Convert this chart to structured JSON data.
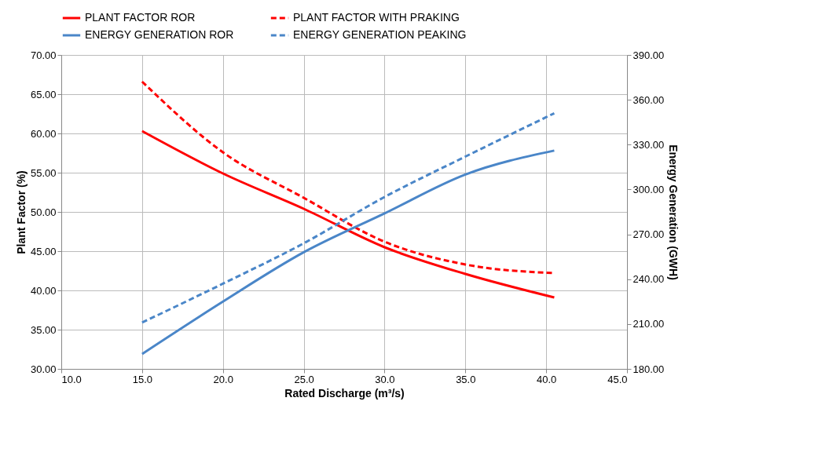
{
  "chart_data": {
    "type": "line",
    "xlabel": "Rated Discharge (m³/s)",
    "ylabel": "Plant Factor (%)",
    "y2label": "Energy Generation (GWH)",
    "xlim": [
      10,
      45
    ],
    "xticks": [
      {
        "value": 10,
        "label": "10.0"
      },
      {
        "value": 15,
        "label": "15.0"
      },
      {
        "value": 20,
        "label": "20.0"
      },
      {
        "value": 25,
        "label": "25.0"
      },
      {
        "value": 30,
        "label": "30.0"
      },
      {
        "value": 35,
        "label": "35.0"
      },
      {
        "value": 40,
        "label": "40.0"
      },
      {
        "value": 45,
        "label": "45.0"
      }
    ],
    "ylim": [
      30,
      70
    ],
    "yticks": [
      {
        "value": 30,
        "label": "30.00"
      },
      {
        "value": 35,
        "label": "35.00"
      },
      {
        "value": 40,
        "label": "40.00"
      },
      {
        "value": 45,
        "label": "45.00"
      },
      {
        "value": 50,
        "label": "50.00"
      },
      {
        "value": 55,
        "label": "55.00"
      },
      {
        "value": 60,
        "label": "60.00"
      },
      {
        "value": 65,
        "label": "65.00"
      },
      {
        "value": 70,
        "label": "70.00"
      }
    ],
    "y2lim": [
      180,
      390
    ],
    "y2ticks": [
      {
        "value": 180,
        "label": "180.00"
      },
      {
        "value": 210,
        "label": "210.00"
      },
      {
        "value": 240,
        "label": "240.00"
      },
      {
        "value": 270,
        "label": "270.00"
      },
      {
        "value": 300,
        "label": "300.00"
      },
      {
        "value": 330,
        "label": "330.00"
      },
      {
        "value": 360,
        "label": "360.00"
      },
      {
        "value": 390,
        "label": "390.00"
      }
    ],
    "grid": true,
    "legend": "top",
    "marker": "none",
    "series": [
      {
        "name": "PLANT FACTOR ROR",
        "color": "#ff0000",
        "line_style": "solid",
        "x": [
          15,
          20,
          25,
          30,
          35,
          40.5
        ],
        "values": [
          60.3,
          54.9,
          50.4,
          45.5,
          42.1,
          39.1
        ]
      },
      {
        "name": "PLANT FACTOR WITH PRAKING",
        "color": "#ff0000",
        "line_style": "dashed",
        "x": [
          15,
          20,
          25,
          30,
          35,
          40.5
        ],
        "values": [
          66.6,
          57.6,
          51.8,
          46.2,
          43.3,
          42.2
        ]
      },
      {
        "name": "ENERGY GENERATION ROR",
        "color": "#4a86c8",
        "line_style": "solid",
        "axis": "y2",
        "x": [
          15,
          20,
          25,
          30,
          35,
          40.5
        ],
        "values": [
          190,
          225,
          258,
          284,
          310,
          326
        ]
      },
      {
        "name": "ENERGY GENERATION PEAKING",
        "color": "#4a86c8",
        "line_style": "dashed",
        "axis": "y2",
        "x": [
          15,
          20,
          25,
          30,
          35,
          40.5
        ],
        "values": [
          211,
          237,
          264,
          295,
          322,
          351
        ]
      }
    ]
  }
}
